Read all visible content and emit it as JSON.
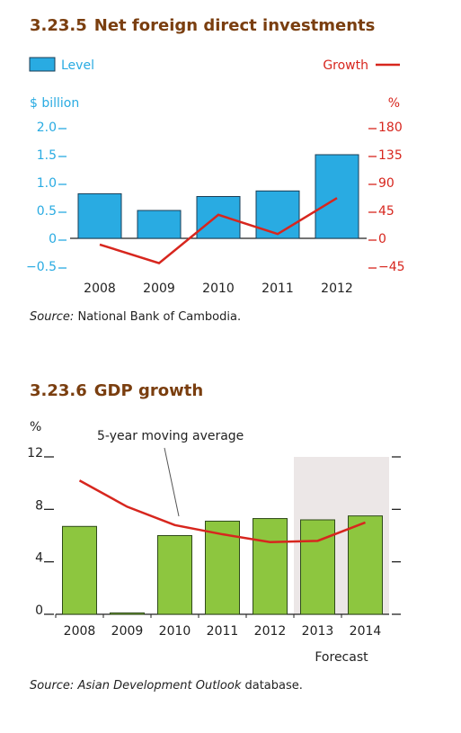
{
  "colors": {
    "title": "#7a3e0f",
    "bar_blue": "#29abe2",
    "growth_red": "#d7261e",
    "bar_green": "#8dc63f",
    "forecast_shade": "#ece7e7",
    "blue_text": "#29abe2",
    "red_text": "#d7261e"
  },
  "chart_data": [
    {
      "type": "bar",
      "figure_number": "3.23.5",
      "title": "Net foreign direct investments",
      "source_label": "Source:",
      "source_text": "National Bank of Cambodia.",
      "categories": [
        "2008",
        "2009",
        "2010",
        "2011",
        "2012"
      ],
      "left_axis_unit": "$ billion",
      "right_axis_unit": "%",
      "left_ticks": [
        "2.0",
        "1.5",
        "1.0",
        "0.5",
        "0",
        "−0.5"
      ],
      "right_ticks": [
        "180",
        "135",
        "90",
        "45",
        "0",
        "−45"
      ],
      "ylim_left": [
        -0.5,
        2.0
      ],
      "ylim_right": [
        -45,
        180
      ],
      "series": [
        {
          "name": "Level",
          "type": "bar",
          "axis": "left",
          "values": [
            0.8,
            0.5,
            0.75,
            0.85,
            1.5
          ]
        },
        {
          "name": "Growth",
          "type": "line",
          "axis": "right",
          "values": [
            -10,
            -40,
            38,
            7,
            65
          ]
        }
      ],
      "legend": {
        "left": "Level",
        "right": "Growth"
      }
    },
    {
      "type": "bar",
      "figure_number": "3.23.6",
      "title": "GDP growth",
      "source_label": "Source:",
      "source_italic": "Asian Development Outlook",
      "source_text": " database.",
      "categories": [
        "2008",
        "2009",
        "2010",
        "2011",
        "2012",
        "2013",
        "2014"
      ],
      "y_unit": "%",
      "y_ticks": [
        "12",
        "8",
        "4",
        "0"
      ],
      "ylim": [
        0,
        12
      ],
      "series": [
        {
          "name": "GDP growth",
          "type": "bar",
          "values": [
            6.7,
            0.1,
            6.0,
            7.1,
            7.3,
            7.2,
            7.5
          ]
        },
        {
          "name": "5-year moving average",
          "type": "line",
          "values": [
            10.2,
            8.2,
            6.8,
            6.1,
            5.5,
            5.6,
            7.0
          ]
        }
      ],
      "annotation": "5-year moving average",
      "forecast_label": "Forecast",
      "forecast_start_index": 5
    }
  ]
}
